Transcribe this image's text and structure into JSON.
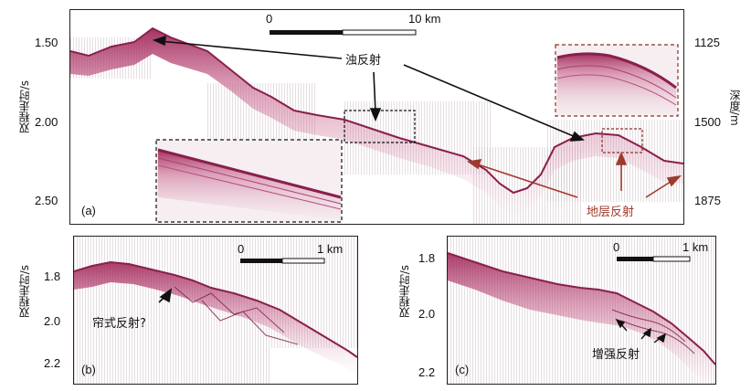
{
  "panel_a": {
    "letter": "(a)",
    "y_left_label": "双程走时/s",
    "y_right_label": "深度/m",
    "y_left_ticks": [
      "1.50",
      "2.00",
      "2.50"
    ],
    "y_right_ticks": [
      "1125",
      "1500",
      "1875"
    ],
    "scalebar": {
      "start": "0",
      "end": "10 km"
    },
    "annotation_turbid": "浊反射",
    "annotation_strata": "地层反射",
    "colors": {
      "turbid_arrow": "#111111",
      "strata_arrow": "#9e3a2c",
      "strata_text": "#9e3a2c",
      "inset_box_black": "#111111",
      "inset_box_red": "#8b2f24",
      "seismic": "#a0285a"
    }
  },
  "panel_b": {
    "letter": "(b)",
    "y_label": "双程走时/s",
    "y_ticks": [
      "1.8",
      "2.0",
      "2.2"
    ],
    "scalebar": {
      "start": "0",
      "end": "1 km"
    },
    "annotation": "帘式反射?"
  },
  "panel_c": {
    "letter": "(c)",
    "y_label": "双程走时/s",
    "y_ticks": [
      "1.8",
      "2.0",
      "2.2"
    ],
    "scalebar": {
      "start": "0",
      "end": "1 km"
    },
    "annotation": "增强反射"
  }
}
